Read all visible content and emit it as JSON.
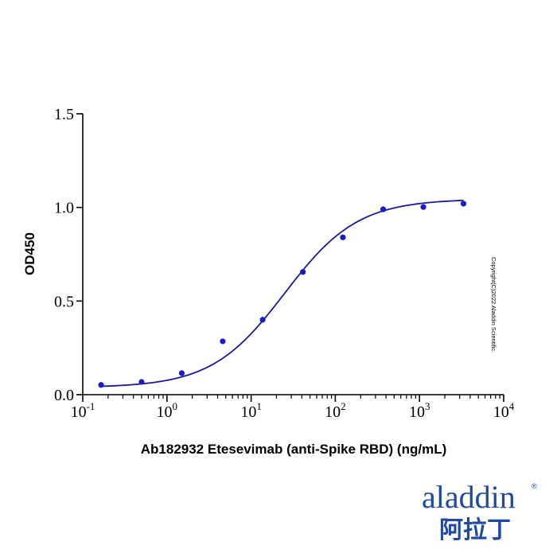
{
  "chart_data": {
    "type": "scatter",
    "title": "",
    "xlabel": "Ab182932 Etesevimab (anti-Spike RBD) (ng/mL)",
    "ylabel": "OD450",
    "xscale": "log10",
    "xlim": [
      0.1,
      10000
    ],
    "ylim": [
      0,
      1.5
    ],
    "x_ticks": [
      {
        "base": "10",
        "exp": "-1"
      },
      {
        "base": "10",
        "exp": "0"
      },
      {
        "base": "10",
        "exp": "1"
      },
      {
        "base": "10",
        "exp": "2"
      },
      {
        "base": "10",
        "exp": "3"
      },
      {
        "base": "10",
        "exp": "4"
      }
    ],
    "y_ticks": [
      "0.0",
      "0.5",
      "1.0",
      "1.5"
    ],
    "y_tick_values": [
      0,
      0.5,
      1.0,
      1.5
    ],
    "series": [
      {
        "name": "data",
        "x": [
          0.165,
          0.5,
          1.5,
          4.6,
          13.7,
          41.2,
          123,
          370,
          1111,
          3333
        ],
        "y": [
          0.052,
          0.068,
          0.115,
          0.285,
          0.4,
          0.655,
          0.84,
          0.99,
          1.002,
          1.02
        ]
      }
    ],
    "fit": {
      "model": "4PL",
      "bottom": 0.038,
      "top": 1.045,
      "ec50": 25,
      "hill": 1.0
    },
    "grid": false,
    "colors": {
      "points": "#1a1acc",
      "curve": "#1a1aa0",
      "axis": "#000000"
    }
  },
  "watermark": {
    "copyright": "Copyright(C)2022 Aladdin Scientific."
  },
  "logo": {
    "text_en": "aladdin",
    "text_cn": "阿拉丁",
    "reg": "®",
    "color": "#1f4aa0"
  }
}
